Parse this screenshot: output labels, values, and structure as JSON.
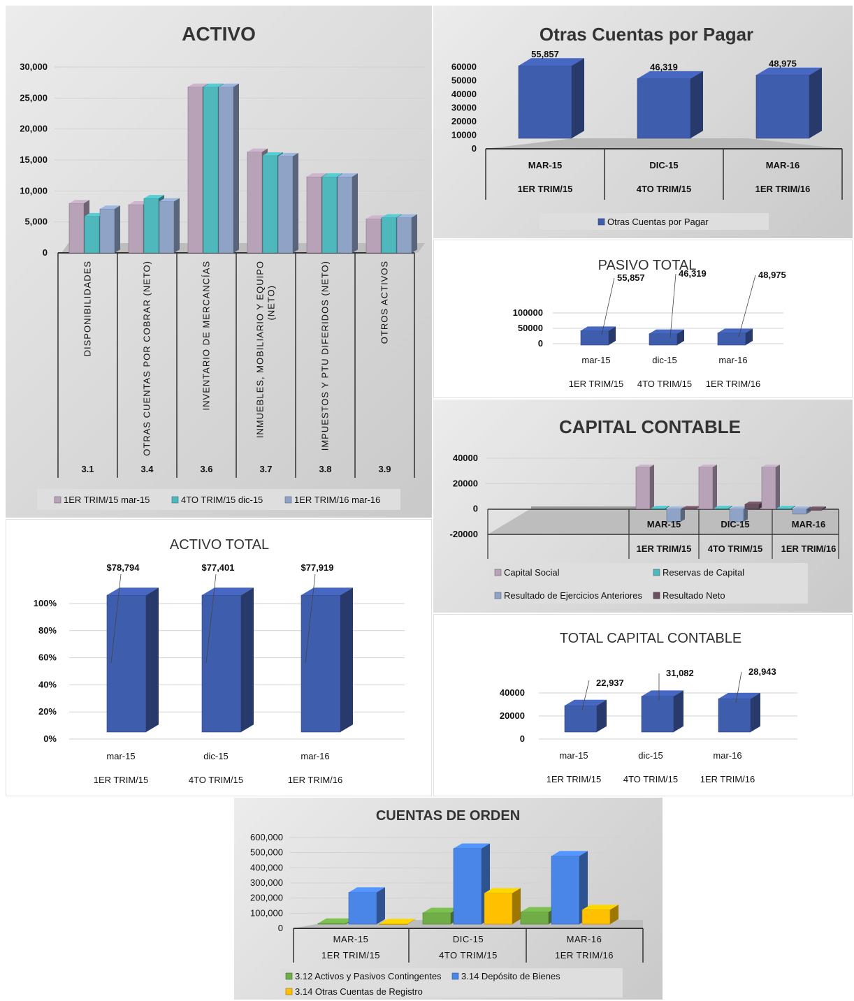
{
  "colors": {
    "mauve": "#b7a2b8",
    "teal": "#4fb8bd",
    "steel": "#8fa3c7",
    "blue": "#3f5dad",
    "darkmauve": "#6b5060",
    "green": "#70ad47",
    "brightblue": "#4a86e8",
    "yellow": "#ffc000"
  },
  "activo": {
    "title": "ACTIVO",
    "yticks": [
      "30,000",
      "25,000",
      "20,000",
      "15,000",
      "10,000",
      "5,000",
      "0"
    ],
    "chart_data": {
      "type": "bar",
      "title": "ACTIVO",
      "ylim": [
        0,
        30000
      ],
      "categories": [
        "DISPONIBILIDADES",
        "OTRAS CUENTAS POR COBRAR (NETO)",
        "INVENTARIO DE MERCANCÍAS",
        "INMUEBLES, MOBILIARIO Y EQUIPO (NETO)",
        "IMPUESTOS Y PTU DIFERIDOS (NETO)",
        "OTROS ACTIVOS"
      ],
      "codes": [
        "3.1",
        "3.4",
        "3.6",
        "3.7",
        "3.8",
        "3.9"
      ],
      "series": [
        {
          "name": "1ER TRIM/15 mar-15",
          "values": [
            8000,
            7800,
            26800,
            16300,
            12300,
            5500
          ]
        },
        {
          "name": "4TO TRIM/15 dic-15",
          "values": [
            5900,
            8800,
            26800,
            15700,
            12300,
            5700
          ]
        },
        {
          "name": "1ER TRIM/16 mar-16",
          "values": [
            7100,
            8300,
            26800,
            15600,
            12300,
            5700
          ]
        }
      ]
    }
  },
  "otras": {
    "title": "Otras Cuentas por Pagar",
    "yticks": [
      "60000",
      "50000",
      "40000",
      "30000",
      "20000",
      "10000",
      "0"
    ],
    "legend": "Otras Cuentas por Pagar",
    "chart_data": {
      "type": "bar",
      "title": "Otras Cuentas por Pagar",
      "ylim": [
        0,
        60000
      ],
      "categories": [
        "MAR-15",
        "DIC-15",
        "MAR-16"
      ],
      "groups": [
        "1ER TRIM/15",
        "4TO TRIM/15",
        "1ER TRIM/16"
      ],
      "series": [
        {
          "name": "Otras Cuentas por Pagar",
          "values": [
            55857,
            46319,
            48975
          ]
        }
      ],
      "labels": [
        "55,857",
        "46,319",
        "48,975"
      ]
    }
  },
  "pasivo": {
    "title": "PASIVO TOTAL",
    "yticks": [
      "100000",
      "50000",
      "0"
    ],
    "chart_data": {
      "type": "bar",
      "title": "PASIVO TOTAL",
      "ylim": [
        0,
        100000
      ],
      "categories": [
        "mar-15",
        "dic-15",
        "mar-16"
      ],
      "groups": [
        "1ER TRIM/15",
        "4TO TRIM/15",
        "1ER TRIM/16"
      ],
      "values": [
        55857,
        46319,
        48975
      ],
      "labels": [
        "55,857",
        "46,319",
        "48,975"
      ]
    }
  },
  "capital": {
    "title": "CAPITAL CONTABLE",
    "yticks": [
      "40000",
      "20000",
      "0",
      "-20000"
    ],
    "chart_data": {
      "type": "bar",
      "title": "CAPITAL CONTABLE",
      "ylim": [
        -20000,
        40000
      ],
      "categories": [
        "MAR-15",
        "DIC-15",
        "MAR-16"
      ],
      "groups": [
        "1ER TRIM/15",
        "4TO TRIM/15",
        "1ER TRIM/16"
      ],
      "series": [
        {
          "name": "Capital Social",
          "values": [
            33000,
            33000,
            33000
          ]
        },
        {
          "name": "Reservas de Capital",
          "values": [
            600,
            600,
            600
          ]
        },
        {
          "name": "Resultado de Ejercicios Anteriores",
          "values": [
            -10000,
            -10000,
            -4000
          ]
        },
        {
          "name": "Resultado Neto",
          "values": [
            300,
            3800,
            -1000
          ]
        }
      ]
    }
  },
  "activo_total": {
    "title": "ACTIVO TOTAL",
    "yticks": [
      "100%",
      "80%",
      "60%",
      "40%",
      "20%",
      "0%"
    ],
    "chart_data": {
      "type": "bar",
      "title": "ACTIVO TOTAL",
      "ylim": [
        0,
        100
      ],
      "categories": [
        "mar-15",
        "dic-15",
        "mar-16"
      ],
      "groups": [
        "1ER TRIM/15",
        "4TO TRIM/15",
        "1ER TRIM/16"
      ],
      "values": [
        100,
        100,
        100
      ],
      "labels": [
        "$78,794",
        "$77,401",
        "$77,919"
      ]
    }
  },
  "total_capital": {
    "title": "TOTAL CAPITAL CONTABLE",
    "yticks": [
      "40000",
      "20000",
      "0"
    ],
    "chart_data": {
      "type": "bar",
      "title": "TOTAL CAPITAL CONTABLE",
      "ylim": [
        0,
        40000
      ],
      "categories": [
        "mar-15",
        "dic-15",
        "mar-16"
      ],
      "groups": [
        "1ER TRIM/15",
        "4TO TRIM/15",
        "1ER TRIM/16"
      ],
      "values": [
        22937,
        31082,
        28943
      ],
      "labels": [
        "22,937",
        "31,082",
        "28,943"
      ]
    }
  },
  "orden": {
    "title": "CUENTAS DE ORDEN",
    "yticks": [
      "600,000",
      "500,000",
      "400,000",
      "300,000",
      "200,000",
      "100,000",
      "0"
    ],
    "chart_data": {
      "type": "bar",
      "title": "CUENTAS DE ORDEN",
      "ylim": [
        0,
        600000
      ],
      "categories": [
        "MAR-15",
        "DIC-15",
        "MAR-16"
      ],
      "groups": [
        "1ER TRIM/15",
        "4TO TRIM/15",
        "1ER TRIM/16"
      ],
      "series": [
        {
          "name": "3.12 Activos y Pasivos Contingentes",
          "values": [
            5000,
            75000,
            80000
          ]
        },
        {
          "name": "3.14 Depósito de Bienes",
          "values": [
            210000,
            500000,
            450000
          ]
        },
        {
          "name": "3.14 Otras Cuentas de Registro",
          "values": [
            2000,
            205000,
            95000
          ]
        }
      ]
    }
  }
}
